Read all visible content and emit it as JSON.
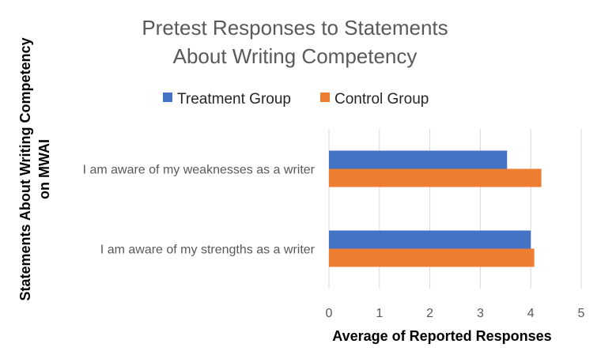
{
  "chart_data": {
    "type": "bar",
    "orientation": "horizontal",
    "title_lines": [
      "Pretest Responses to Statements",
      "About Writing Competency"
    ],
    "xlabel": "Average of Reported Responses",
    "ylabel_lines": [
      "Statements About Writing Competency",
      "on MWAI"
    ],
    "categories": [
      "I am aware of my weaknesses as a writer",
      "I am aware of my strengths as a writer"
    ],
    "series": [
      {
        "name": "Treatment Group",
        "color": "#4472C4",
        "values": [
          3.53,
          4.0
        ]
      },
      {
        "name": "Control Group",
        "color": "#ED7D31",
        "values": [
          4.21,
          4.07
        ]
      }
    ],
    "xlim": [
      0,
      5
    ],
    "xticks": [
      "0",
      "1",
      "2",
      "3",
      "4",
      "5"
    ],
    "grid": true,
    "legend_position": "top"
  }
}
